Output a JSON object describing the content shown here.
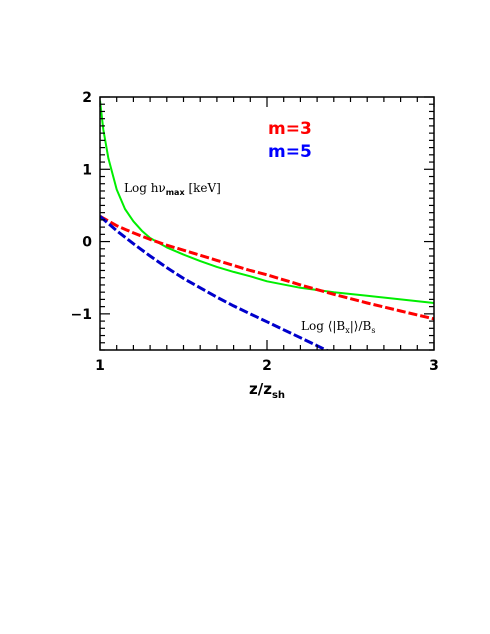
{
  "chart_data": {
    "type": "line",
    "xlabel": {
      "main": "z/z",
      "sub": "sh"
    },
    "xlim": [
      1,
      3
    ],
    "ylim": [
      -1.5,
      2
    ],
    "x_ticks": [
      1,
      2,
      3
    ],
    "x_tick_labels": [
      "1",
      "2",
      "3"
    ],
    "y_ticks": [
      2,
      1,
      0,
      -1
    ],
    "y_tick_labels": [
      "2",
      "1",
      "0",
      "−1"
    ],
    "grid": false,
    "legend": [
      {
        "text": "m=3",
        "color": "#ff0000"
      },
      {
        "text": "m=5",
        "color": "#0000ff"
      }
    ],
    "annotations": {
      "hnu": {
        "prefix": "Log hν",
        "sub": "max",
        "suffix": " [keV]"
      },
      "bx": {
        "prefix": "Log ⟨|B",
        "sub1": "x",
        "mid": "|⟩/B",
        "sub2": "s"
      }
    },
    "series": [
      {
        "color": "#00ee00",
        "style": "solid",
        "x": [
          1.0,
          1.02,
          1.05,
          1.1,
          1.15,
          1.2,
          1.25,
          1.3,
          1.4,
          1.5,
          1.6,
          1.7,
          1.8,
          1.9,
          2.0,
          2.2,
          2.4,
          2.6,
          2.8,
          3.0
        ],
        "y": [
          1.95,
          1.55,
          1.15,
          0.72,
          0.45,
          0.28,
          0.15,
          0.05,
          -0.08,
          -0.18,
          -0.27,
          -0.35,
          -0.42,
          -0.48,
          -0.55,
          -0.64,
          -0.7,
          -0.75,
          -0.8,
          -0.85
        ]
      },
      {
        "color": "#ff0000",
        "style": "dashed",
        "x": [
          1.0,
          1.1,
          1.2,
          1.3,
          1.4,
          1.5,
          1.6,
          1.7,
          1.8,
          1.9,
          2.0,
          2.2,
          2.4,
          2.6,
          2.8,
          3.0
        ],
        "y": [
          0.35,
          0.22,
          0.12,
          0.03,
          -0.05,
          -0.12,
          -0.19,
          -0.26,
          -0.33,
          -0.4,
          -0.46,
          -0.6,
          -0.73,
          -0.85,
          -0.96,
          -1.07
        ]
      },
      {
        "color": "#0000cc",
        "style": "dashed",
        "x": [
          1.0,
          1.1,
          1.2,
          1.3,
          1.4,
          1.5,
          1.6,
          1.7,
          1.8,
          1.9,
          2.0,
          2.1,
          2.2,
          2.3,
          2.37
        ],
        "y": [
          0.35,
          0.15,
          -0.03,
          -0.2,
          -0.36,
          -0.51,
          -0.64,
          -0.77,
          -0.89,
          -1.0,
          -1.11,
          -1.22,
          -1.33,
          -1.44,
          -1.52
        ]
      }
    ]
  }
}
